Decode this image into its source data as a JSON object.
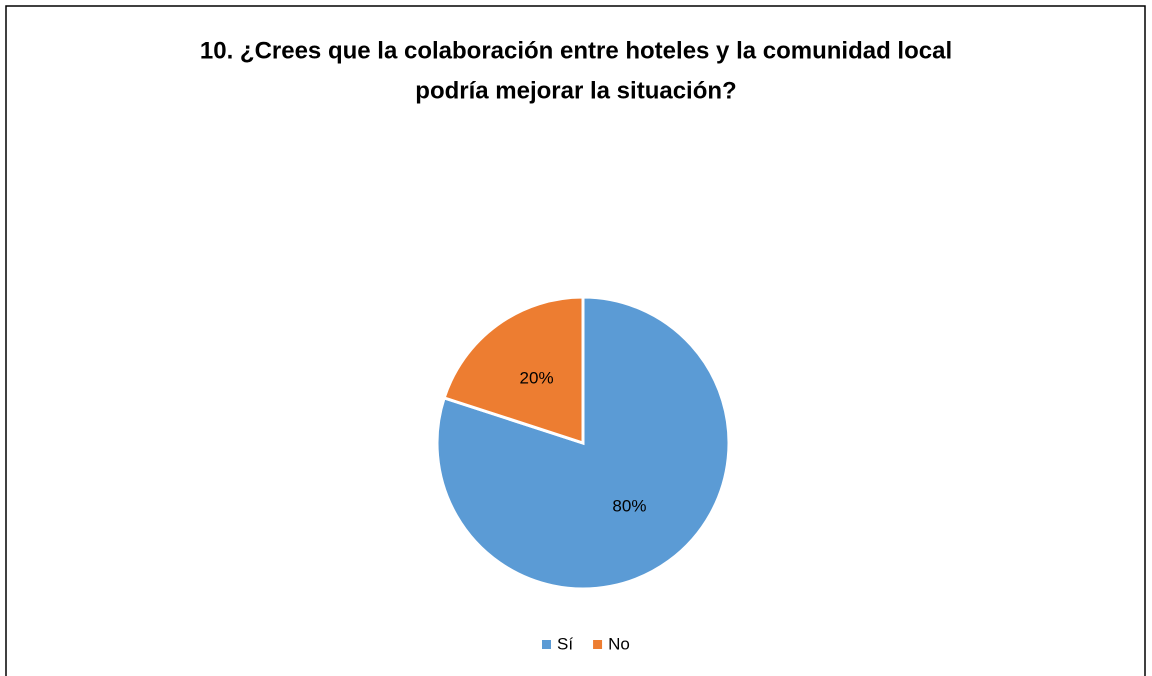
{
  "chart_data": {
    "type": "pie",
    "title": [
      "10. ¿Crees que la colaboración entre hoteles y la comunidad local",
      "podría mejorar la situación?"
    ],
    "categories": [
      "Sí",
      "No"
    ],
    "values": [
      80,
      20
    ],
    "value_labels": [
      "80%",
      "20%"
    ],
    "colors": [
      "#5b9bd5",
      "#ed7d31"
    ],
    "legend": "bottom"
  }
}
